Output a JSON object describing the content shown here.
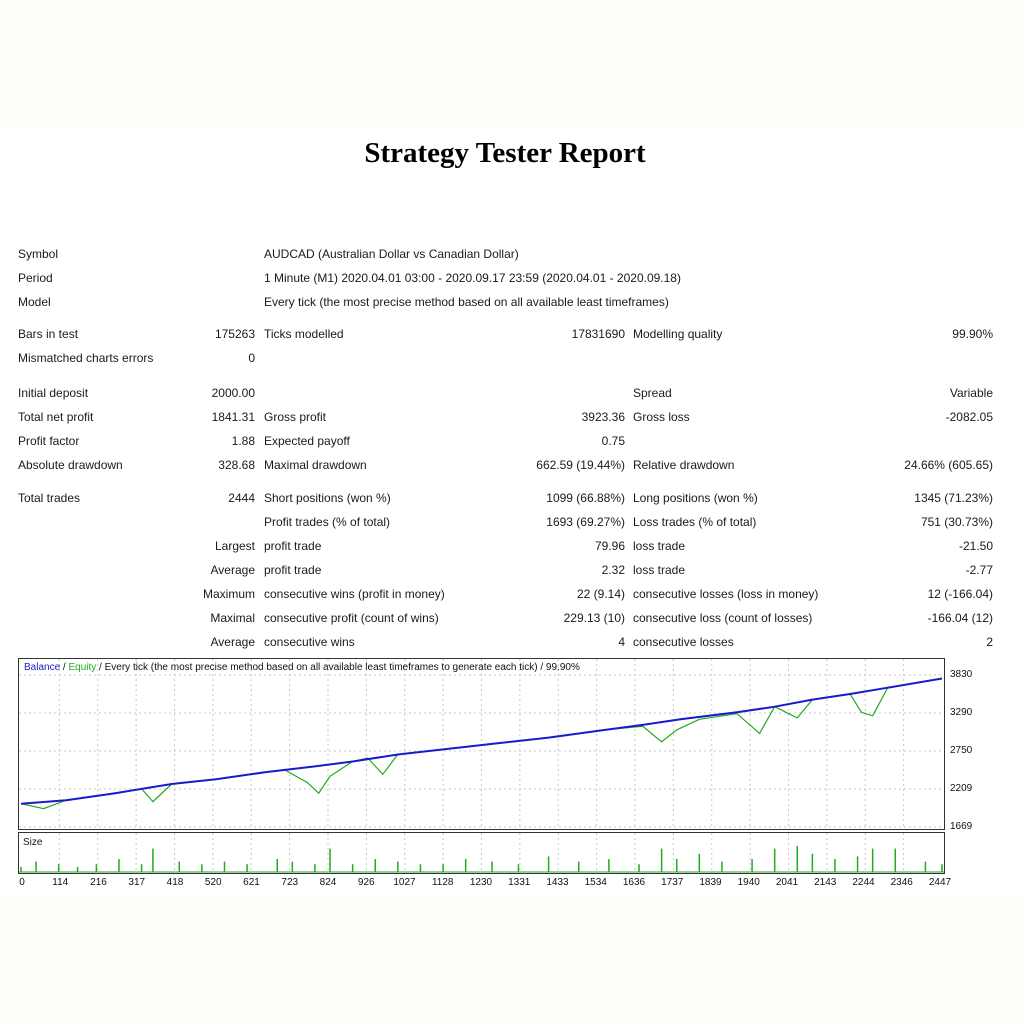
{
  "title": "Strategy Tester Report",
  "info": {
    "symbol_label": "Symbol",
    "symbol_value": "AUDCAD (Australian Dollar vs Canadian Dollar)",
    "period_label": "Period",
    "period_value": "1 Minute (M1) 2020.04.01 03:00 - 2020.09.17 23:59 (2020.04.01 - 2020.09.18)",
    "model_label": "Model",
    "model_value": "Every tick (the most precise method based on all available least timeframes)"
  },
  "stats": {
    "bars_label": "Bars in test",
    "bars_value": "175263",
    "ticks_label": "Ticks modelled",
    "ticks_value": "17831690",
    "quality_label": "Modelling quality",
    "quality_value": "99.90%",
    "mismatch_label": "Mismatched charts errors",
    "mismatch_value": "0",
    "deposit_label": "Initial deposit",
    "deposit_value": "2000.00",
    "spread_label": "Spread",
    "spread_value": "Variable",
    "netprofit_label": "Total net profit",
    "netprofit_value": "1841.31",
    "grossprofit_label": "Gross profit",
    "grossprofit_value": "3923.36",
    "grossloss_label": "Gross loss",
    "grossloss_value": "-2082.05",
    "pf_label": "Profit factor",
    "pf_value": "1.88",
    "payoff_label": "Expected payoff",
    "payoff_value": "0.75",
    "absdd_label": "Absolute drawdown",
    "absdd_value": "328.68",
    "maxdd_label": "Maximal drawdown",
    "maxdd_value": "662.59 (19.44%)",
    "reldd_label": "Relative drawdown",
    "reldd_value": "24.66% (605.65)",
    "trades_label": "Total trades",
    "trades_value": "2444",
    "short_label": "Short positions (won %)",
    "short_value": "1099 (66.88%)",
    "long_label": "Long positions (won %)",
    "long_value": "1345 (71.23%)",
    "ptrades_label": "Profit trades (% of total)",
    "ptrades_value": "1693 (69.27%)",
    "ltrades_label": "Loss trades (% of total)",
    "ltrades_value": "751 (30.73%)",
    "largest_label": "Largest",
    "largest_profit_label": "profit trade",
    "largest_profit_value": "79.96",
    "largest_loss_label": "loss trade",
    "largest_loss_value": "-21.50",
    "average_label": "Average",
    "average_profit_label": "profit trade",
    "average_profit_value": "2.32",
    "average_loss_label": "loss trade",
    "average_loss_value": "-2.77",
    "maximum_label": "Maximum",
    "max_wins_label": "consecutive wins (profit in money)",
    "max_wins_value": "22 (9.14)",
    "max_losses_label": "consecutive losses (loss in money)",
    "max_losses_value": "12 (-166.04)",
    "maximal_label": "Maximal",
    "maximal_profit_label": "consecutive profit (count of wins)",
    "maximal_profit_value": "229.13 (10)",
    "maximal_loss_label": "consecutive loss (count of losses)",
    "maximal_loss_value": "-166.04 (12)",
    "average2_label": "Average",
    "avg_wins_label": "consecutive wins",
    "avg_wins_value": "4",
    "avg_losses_label": "consecutive losses",
    "avg_losses_value": "2"
  },
  "legend": {
    "balance": "Balance",
    "sep1": " / ",
    "equity": "Equity",
    "rest": " / Every tick (the most precise method based on all available least timeframes to generate each tick) / 99.90%"
  },
  "colors": {
    "balance": "#1a1acc",
    "equity": "#22aa22",
    "grid": "#c8c8c8"
  },
  "chart_data": {
    "type": "line",
    "x_ticks": [
      "0",
      "114",
      "216",
      "317",
      "418",
      "520",
      "621",
      "723",
      "824",
      "926",
      "1027",
      "1128",
      "1230",
      "1331",
      "1433",
      "1534",
      "1636",
      "1737",
      "1839",
      "1940",
      "2041",
      "2143",
      "2244",
      "2346",
      "2447"
    ],
    "y_ticks": [
      "3830",
      "3290",
      "2750",
      "2209",
      "1669"
    ],
    "ylim": [
      1669,
      3830
    ],
    "xlim": [
      0,
      2444
    ],
    "series": [
      {
        "name": "Balance",
        "x": [
          0,
          120,
          250,
          400,
          520,
          650,
          780,
          880,
          1000,
          1100,
          1250,
          1400,
          1550,
          1650,
          1750,
          1900,
          2000,
          2100,
          2200,
          2300,
          2444
        ],
        "y": [
          2000,
          2050,
          2150,
          2280,
          2350,
          2450,
          2530,
          2600,
          2700,
          2760,
          2850,
          2940,
          3050,
          3120,
          3200,
          3300,
          3380,
          3480,
          3560,
          3650,
          3780
        ]
      },
      {
        "name": "Equity",
        "x": [
          0,
          60,
          120,
          200,
          320,
          350,
          400,
          520,
          650,
          700,
          760,
          790,
          820,
          880,
          920,
          960,
          1000,
          1100,
          1250,
          1400,
          1550,
          1650,
          1700,
          1740,
          1800,
          1900,
          1960,
          2000,
          2060,
          2100,
          2200,
          2230,
          2260,
          2300,
          2444
        ],
        "y": [
          2000,
          1930,
          2050,
          2110,
          2210,
          2030,
          2280,
          2350,
          2450,
          2480,
          2300,
          2150,
          2390,
          2600,
          2650,
          2420,
          2700,
          2760,
          2850,
          2940,
          3050,
          3100,
          2880,
          3050,
          3200,
          3280,
          3000,
          3380,
          3220,
          3480,
          3560,
          3300,
          3250,
          3650,
          3780
        ]
      }
    ],
    "size_series": {
      "name": "Size",
      "x": [
        0,
        40,
        100,
        150,
        200,
        260,
        320,
        350,
        420,
        480,
        540,
        600,
        680,
        720,
        780,
        820,
        880,
        940,
        1000,
        1060,
        1120,
        1180,
        1250,
        1320,
        1400,
        1480,
        1560,
        1640,
        1700,
        1740,
        1800,
        1860,
        1940,
        2000,
        2060,
        2100,
        2160,
        2220,
        2260,
        2320,
        2400,
        2444
      ],
      "y": [
        0.2,
        0.4,
        0.3,
        0.2,
        0.3,
        0.5,
        0.3,
        0.9,
        0.4,
        0.3,
        0.4,
        0.3,
        0.5,
        0.4,
        0.3,
        0.9,
        0.3,
        0.5,
        0.4,
        0.3,
        0.3,
        0.5,
        0.4,
        0.3,
        0.6,
        0.4,
        0.5,
        0.3,
        0.9,
        0.5,
        0.7,
        0.4,
        0.5,
        0.9,
        1.0,
        0.7,
        0.5,
        0.6,
        0.9,
        0.9,
        0.4,
        0.3
      ]
    }
  }
}
